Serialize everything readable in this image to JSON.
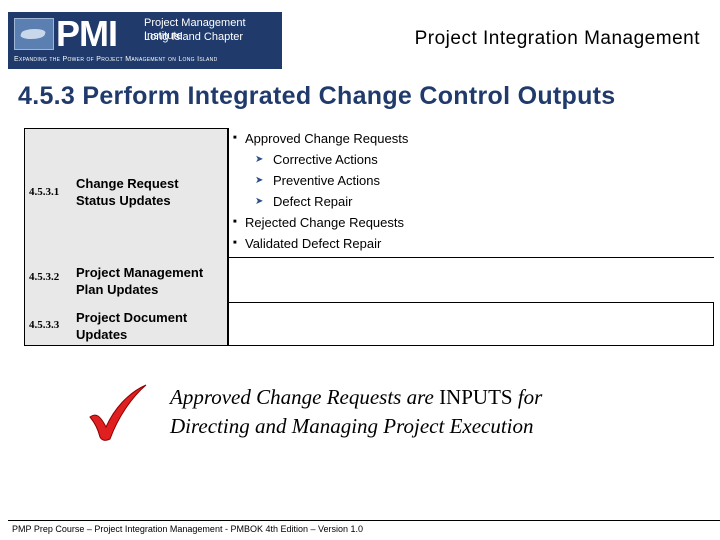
{
  "logo": {
    "pmi_text": "PMI",
    "line1": "Project Management Institute",
    "line2": "Long Island Chapter",
    "tagline": "Expanding the Power of Project Management on Long Island"
  },
  "header": {
    "title": "Project Integration Management"
  },
  "main": {
    "title": "4.5.3 Perform Integrated Change Control Outputs"
  },
  "table": {
    "rows": [
      {
        "number": "4.5.3.1",
        "line1": "Change Request",
        "line2": "Status Updates"
      },
      {
        "number": "4.5.3.2",
        "line1": "Project Management",
        "line2": "Plan Updates"
      },
      {
        "number": "4.5.3.3",
        "line1": "Project Document",
        "line2": "Updates"
      }
    ],
    "bullets": {
      "approved": "Approved Change Requests",
      "sub": [
        "Corrective Actions",
        "Preventive Actions",
        "Defect Repair"
      ],
      "rejected": "Rejected Change Requests",
      "validated": "Validated Defect Repair"
    }
  },
  "note": {
    "part1": "Approved Change Requests are",
    "part2": "INPUTS",
    "part3": "for",
    "line2": "Directing and Managing Project Execution"
  },
  "footer": {
    "text": "PMP Prep Course – Project Integration Management - PMBOK 4th Edition – Version 1.0"
  },
  "colors": {
    "brand_navy": "#1f3a6b",
    "check_red": "#e02020"
  }
}
